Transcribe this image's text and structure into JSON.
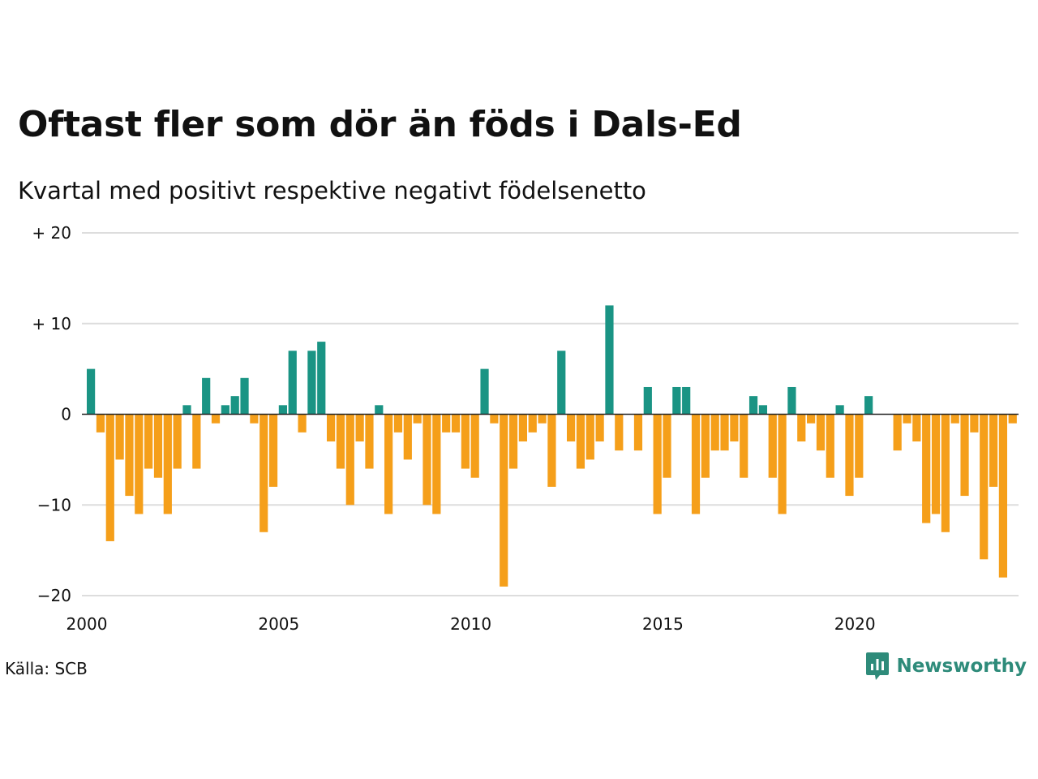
{
  "header": {
    "title": "Oftast fler som dör än föds i Dals-Ed",
    "subtitle": "Kvartal med positivt respektive negativt födelsenetto"
  },
  "footer": {
    "source": "Källa: SCB",
    "brand": "Newsworthy",
    "brand_icon": "newsworthy-logo-icon"
  },
  "colors": {
    "positive": "#1a9484",
    "negative": "#f59f1a",
    "grid": "#dddddd",
    "zero_line": "#222222",
    "brand": "#2e8b7a"
  },
  "chart_data": {
    "type": "bar",
    "x_start": "2000 Q1",
    "x_step": "quarter",
    "xticks": [
      "2000",
      "2005",
      "2010",
      "2015",
      "2020"
    ],
    "xtick_positions": [
      2000,
      2005,
      2010,
      2015,
      2020
    ],
    "yticks": [
      {
        "value": 20,
        "label": "+ 20"
      },
      {
        "value": 10,
        "label": "+ 10"
      },
      {
        "value": 0,
        "label": "0"
      },
      {
        "value": -10,
        "label": "−10"
      },
      {
        "value": -20,
        "label": "−20"
      }
    ],
    "ylim": [
      -20,
      20
    ],
    "grid": true,
    "legend": "none",
    "values": [
      5,
      -2,
      -14,
      -5,
      -9,
      -11,
      -6,
      -7,
      -11,
      -6,
      1,
      -6,
      4,
      -1,
      1,
      2,
      4,
      -1,
      -13,
      -8,
      1,
      7,
      -2,
      7,
      8,
      -3,
      -6,
      -10,
      -3,
      -6,
      1,
      -11,
      -2,
      -5,
      -1,
      -10,
      -11,
      -2,
      -2,
      -6,
      -7,
      5,
      -1,
      -19,
      -6,
      -3,
      -2,
      -1,
      -8,
      7,
      -3,
      -6,
      -5,
      -3,
      12,
      -4,
      0,
      -4,
      3,
      -11,
      -7,
      3,
      3,
      -11,
      -7,
      -4,
      -4,
      -3,
      -7,
      2,
      1,
      -7,
      -11,
      3,
      -3,
      -1,
      -4,
      -7,
      1,
      -9,
      -7,
      2,
      0,
      0,
      -4,
      -1,
      -3,
      -12,
      -11,
      -13,
      -1,
      -9,
      -2,
      -16,
      -8,
      -18,
      -1
    ]
  }
}
